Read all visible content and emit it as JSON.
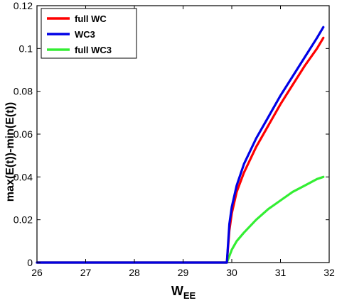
{
  "chart_data": {
    "type": "line",
    "title": "",
    "xlabel": "W",
    "xlabel_subscript": "EE",
    "ylabel": "max(E(t))-min(E(t))",
    "xlim": [
      26,
      32
    ],
    "ylim": [
      0,
      0.12
    ],
    "xticks": [
      "26",
      "27",
      "28",
      "29",
      "30",
      "31",
      "32"
    ],
    "yticks": [
      "0",
      "0.02",
      "0.04",
      "0.06",
      "0.08",
      "0.1",
      "0.12"
    ],
    "grid": false,
    "legend_position": "top-left",
    "series": [
      {
        "name": "full WC",
        "color": "#ff0000",
        "x": [
          26,
          27,
          28,
          29,
          29.8,
          29.9,
          29.95,
          30.0,
          30.1,
          30.25,
          30.5,
          30.75,
          31.0,
          31.25,
          31.5,
          31.75,
          31.88
        ],
        "y": [
          0,
          0,
          0,
          0,
          0,
          0,
          0.015,
          0.023,
          0.033,
          0.042,
          0.054,
          0.064,
          0.074,
          0.083,
          0.092,
          0.1,
          0.105
        ]
      },
      {
        "name": "WC3",
        "color": "#0000e6",
        "x": [
          26,
          27,
          28,
          29,
          29.8,
          29.9,
          29.95,
          30.0,
          30.1,
          30.25,
          30.5,
          30.75,
          31.0,
          31.25,
          31.5,
          31.75,
          31.88
        ],
        "y": [
          0,
          0,
          0,
          0,
          0,
          0,
          0.018,
          0.026,
          0.036,
          0.046,
          0.058,
          0.068,
          0.078,
          0.087,
          0.096,
          0.105,
          0.11
        ]
      },
      {
        "name": "full WC3",
        "color": "#33ee33",
        "x": [
          26,
          27,
          28,
          29,
          29.8,
          29.9,
          29.95,
          30.0,
          30.1,
          30.25,
          30.5,
          30.75,
          31.0,
          31.25,
          31.5,
          31.75,
          31.88
        ],
        "y": [
          0,
          0,
          0,
          0,
          0,
          0,
          0.003,
          0.006,
          0.01,
          0.014,
          0.02,
          0.025,
          0.029,
          0.033,
          0.036,
          0.039,
          0.04
        ]
      }
    ]
  }
}
